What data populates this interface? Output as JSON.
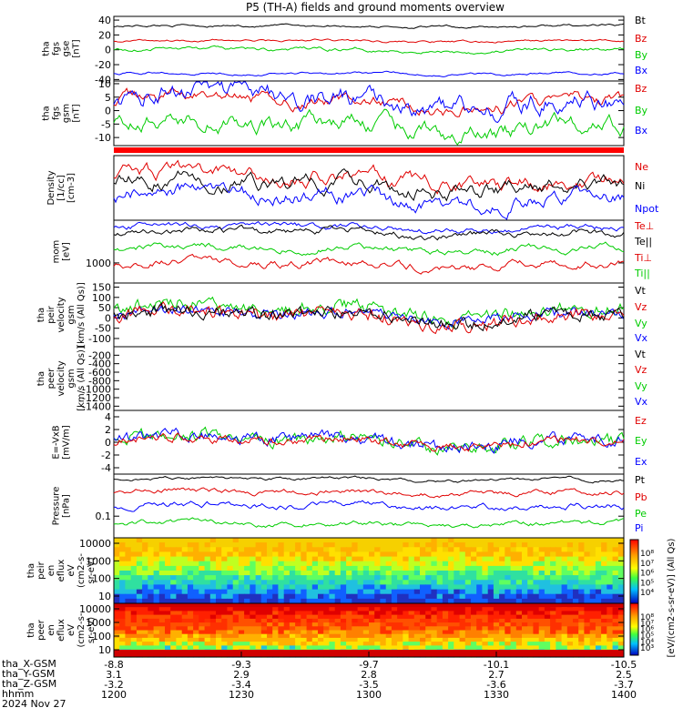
{
  "title": "P5 (TH-A) fields and ground moments overview",
  "panels": [
    {
      "id": "fgs-gse",
      "ylabel": [
        "tha",
        "fgs",
        "gse",
        "[nT]"
      ],
      "yticks": [
        40,
        20,
        0,
        -20,
        -40
      ],
      "ylim": [
        -42,
        45
      ],
      "legend": [
        {
          "text": "Bt",
          "color": "#000000"
        },
        {
          "text": "Bz",
          "color": "#e00000"
        },
        {
          "text": "By",
          "color": "#00cc00"
        },
        {
          "text": "Bx",
          "color": "#0000ff"
        }
      ]
    },
    {
      "id": "fgs-gsm",
      "ylabel": [
        "tha",
        "fgs",
        "gsm",
        "[nT]"
      ],
      "yticks": [
        10,
        5,
        0,
        -5,
        -10
      ],
      "ylim": [
        -13,
        11
      ],
      "legend": [
        {
          "text": "Bz",
          "color": "#e00000"
        },
        {
          "text": "By",
          "color": "#00cc00"
        },
        {
          "text": "Bx",
          "color": "#0000ff"
        }
      ]
    },
    {
      "id": "density",
      "ylabel": [
        "Density",
        "[1/cc]",
        "[cm-3]"
      ],
      "yticks": [],
      "legend": [
        {
          "text": "Ne",
          "color": "#e00000"
        },
        {
          "text": "Ni",
          "color": "#000000"
        },
        {
          "text": "Npot",
          "color": "#0000ff"
        }
      ]
    },
    {
      "id": "temperature",
      "ylabel": [
        "mom",
        "[eV]"
      ],
      "yticks": [
        1000
      ],
      "legend": [
        {
          "text": "Te⊥",
          "color": "#e00000"
        },
        {
          "text": "Te||",
          "color": "#000000"
        },
        {
          "text": "Ti⊥",
          "color": "#e00000"
        },
        {
          "text": "Ti||",
          "color": "#00cc00"
        }
      ]
    },
    {
      "id": "peir-velocity",
      "ylabel": [
        "tha",
        "peir",
        "velocity",
        "gsm",
        "[km/s (All Qs)]"
      ],
      "yticks": [
        150,
        100,
        50,
        0,
        -50,
        -100
      ],
      "ylim": [
        -140,
        170
      ],
      "legend": [
        {
          "text": "Vt",
          "color": "#000000"
        },
        {
          "text": "Vz",
          "color": "#e00000"
        },
        {
          "text": "Vy",
          "color": "#00cc00"
        },
        {
          "text": "Vx",
          "color": "#0000ff"
        }
      ]
    },
    {
      "id": "peer-velocity",
      "ylabel": [
        "tha",
        "peer",
        "velocity",
        "gsm",
        "[km/s (All Qs)]"
      ],
      "yticks": [
        -200,
        -400,
        -600,
        -800,
        -1000,
        -1200,
        -1400
      ],
      "ylim": [
        -1500,
        0
      ],
      "legend": [
        {
          "text": "Vt",
          "color": "#000000"
        },
        {
          "text": "Vz",
          "color": "#e00000"
        },
        {
          "text": "Vy",
          "color": "#00cc00"
        },
        {
          "text": "Vx",
          "color": "#0000ff"
        }
      ]
    },
    {
      "id": "efield",
      "ylabel": [
        "E=-VxB",
        "[mV/m]"
      ],
      "yticks": [
        4,
        2,
        0,
        -2,
        -4
      ],
      "ylim": [
        -5,
        5
      ],
      "legend": [
        {
          "text": "Ez",
          "color": "#e00000"
        },
        {
          "text": "Ey",
          "color": "#00cc00"
        },
        {
          "text": "Ex",
          "color": "#0000ff"
        }
      ]
    },
    {
      "id": "pressure",
      "ylabel": [
        "Pressure",
        "[nPa]"
      ],
      "yticks": [
        0.1
      ],
      "legend": [
        {
          "text": "Pt",
          "color": "#000000"
        },
        {
          "text": "Pb",
          "color": "#e00000"
        },
        {
          "text": "Pe",
          "color": "#00cc00"
        },
        {
          "text": "Pi",
          "color": "#0000ff"
        }
      ]
    },
    {
      "id": "peir-eflux",
      "ylabel": [
        "tha",
        "peir",
        "en",
        "eflux",
        "eV",
        "(cm2-s-",
        "sr-eV)"
      ],
      "yticks": [
        10000,
        1000,
        100,
        10
      ]
    },
    {
      "id": "peer-eflux",
      "ylabel": [
        "tha",
        "peer",
        "en",
        "eflux",
        "eV",
        "(cm2-s-",
        "sr-eV)"
      ],
      "yticks": [
        10000,
        1000,
        100,
        10
      ]
    }
  ],
  "colorbars": [
    {
      "ticks": [
        "10⁸",
        "10⁷",
        "10⁶",
        "10⁵",
        "10⁴"
      ]
    },
    {
      "ticks": [
        "10⁸",
        "10⁷",
        "10⁶",
        "10⁵",
        "10⁴",
        "10³"
      ]
    }
  ],
  "colorbar_label": "[eV/(cm2-s-sr-eV)] (All Qs)",
  "xaxis": {
    "rows": [
      {
        "label": "tha_X-GSM",
        "values": [
          "-8.8",
          "-9.3",
          "-9.7",
          "-10.1",
          "-10.5"
        ]
      },
      {
        "label": "tha_Y-GSM",
        "values": [
          "3.1",
          "2.9",
          "2.8",
          "2.7",
          "2.5"
        ]
      },
      {
        "label": "tha_Z-GSM",
        "values": [
          "-3.2",
          "-3.4",
          "-3.5",
          "-3.6",
          "-3.7"
        ]
      },
      {
        "label": "hhmm",
        "values": [
          "1200",
          "1230",
          "1300",
          "1330",
          "1400"
        ]
      }
    ],
    "date": "2024 Nov 27"
  }
}
